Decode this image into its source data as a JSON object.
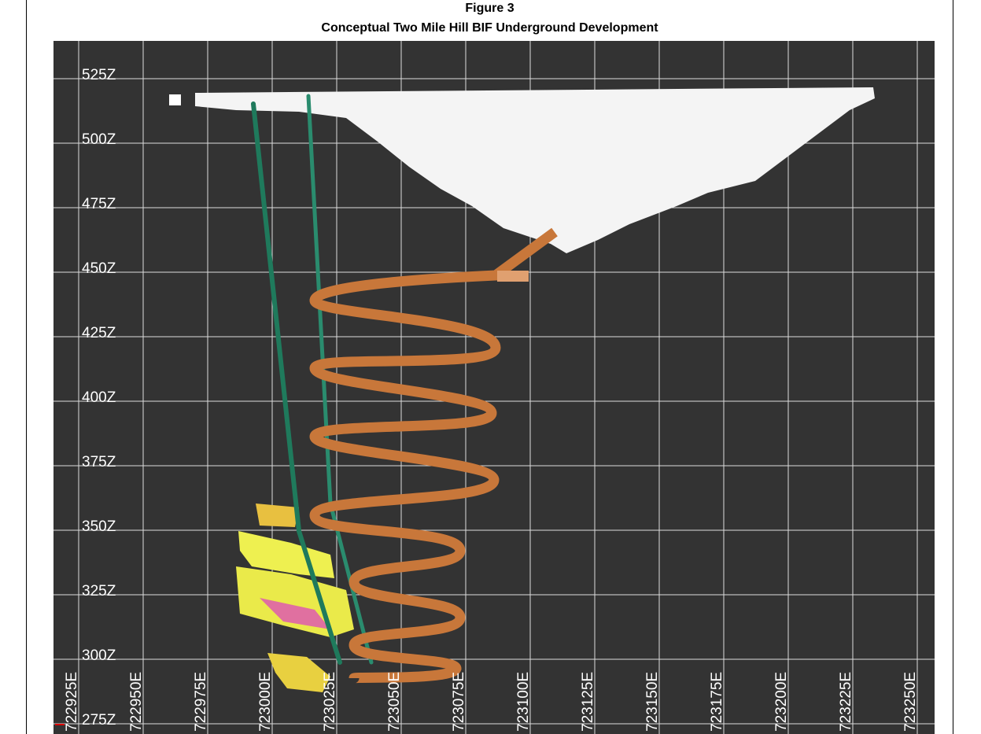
{
  "figure": {
    "label": "Figure 3",
    "title": "Conceptual Two Mile Hill BIF Underground Development"
  },
  "z_labels": [
    "525Z",
    "500Z",
    "475Z",
    "450Z",
    "425Z",
    "400Z",
    "375Z",
    "350Z",
    "325Z",
    "300Z",
    "275Z"
  ],
  "e_labels": [
    "722925E",
    "722950E",
    "722975E",
    "723000E",
    "723025E",
    "723050E",
    "723075E",
    "723100E",
    "723125E",
    "723150E",
    "723175E",
    "723200E",
    "723225E",
    "723250E"
  ]
}
